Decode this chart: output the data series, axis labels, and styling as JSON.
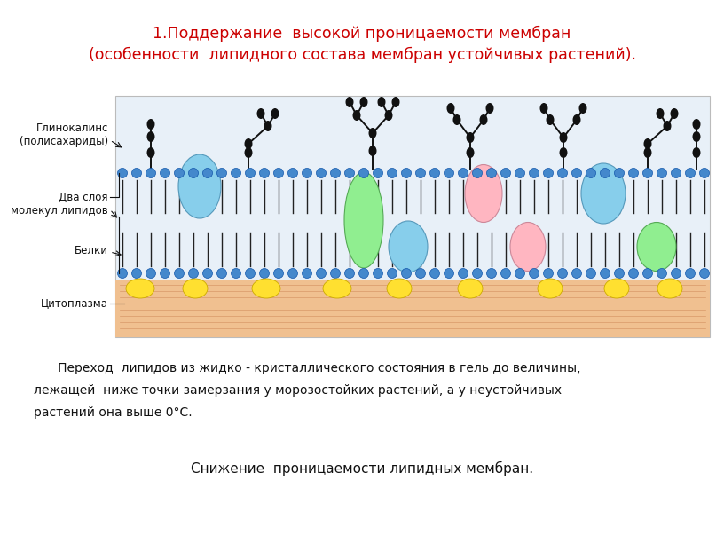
{
  "title_line1": "1.Поддержание  высокой проницаемости мембран",
  "title_line2": "(особенности  липидного состава мембран устойчивых растений).",
  "title_color": "#cc0000",
  "title_fontsize": 12.5,
  "label_glycocalyx": "Глинокалинс\n(полисахариды)",
  "label_bilayer": "Два слоя\nмолекул липидов",
  "label_proteins": "Белки",
  "label_cytoplasm": "Цитоплазма",
  "body_text_line1": "   Переход  липидов из жидко - кристаллического состояния в гель до величины,",
  "body_text_line2": "лежащей  ниже точки замерзания у морозостойких растений, а у неустойчивых",
  "body_text_line3": "растений она выше 0°C.",
  "bottom_text": "Снижение  проницаемости липидных мембран.",
  "bg_color": "#ffffff",
  "lipid_head_color": "#4488cc",
  "node_color": "#111111",
  "cytoplasm_fill": "#f0c090",
  "membrane_bg": "#ddeeff"
}
